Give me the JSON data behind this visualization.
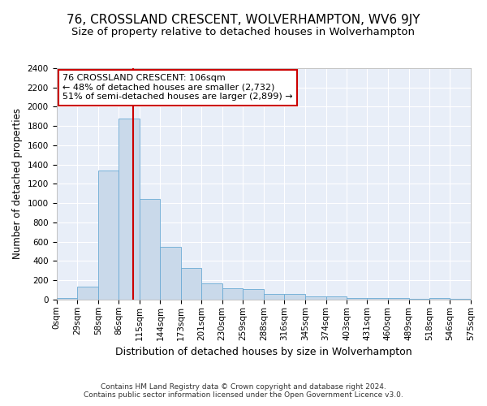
{
  "title": "76, CROSSLAND CRESCENT, WOLVERHAMPTON, WV6 9JY",
  "subtitle": "Size of property relative to detached houses in Wolverhampton",
  "xlabel": "Distribution of detached houses by size in Wolverhampton",
  "ylabel": "Number of detached properties",
  "footnote1": "Contains HM Land Registry data © Crown copyright and database right 2024.",
  "footnote2": "Contains public sector information licensed under the Open Government Licence v3.0.",
  "annotation_line1": "76 CROSSLAND CRESCENT: 106sqm",
  "annotation_line2": "← 48% of detached houses are smaller (2,732)",
  "annotation_line3": "51% of semi-detached houses are larger (2,899) →",
  "bar_edges": [
    0,
    29,
    58,
    86,
    115,
    144,
    173,
    201,
    230,
    259,
    288,
    316,
    345,
    374,
    403,
    431,
    460,
    489,
    518,
    546,
    575
  ],
  "bar_heights": [
    20,
    135,
    1340,
    1880,
    1045,
    550,
    330,
    165,
    120,
    105,
    55,
    55,
    35,
    30,
    20,
    15,
    15,
    5,
    15,
    5,
    20
  ],
  "bar_color": "#c9d9ea",
  "bar_edgecolor": "#6aaad4",
  "red_line_x": 106,
  "ylim": [
    0,
    2400
  ],
  "yticks": [
    0,
    200,
    400,
    600,
    800,
    1000,
    1200,
    1400,
    1600,
    1800,
    2000,
    2200,
    2400
  ],
  "background_color": "#e8eef8",
  "annotation_box_edgecolor": "#cc0000",
  "annotation_box_facecolor": "#ffffff",
  "red_line_color": "#cc0000",
  "title_fontsize": 11,
  "subtitle_fontsize": 9.5,
  "xlabel_fontsize": 9,
  "ylabel_fontsize": 8.5,
  "tick_fontsize": 7.5,
  "annotation_fontsize": 8,
  "footnote_fontsize": 6.5
}
